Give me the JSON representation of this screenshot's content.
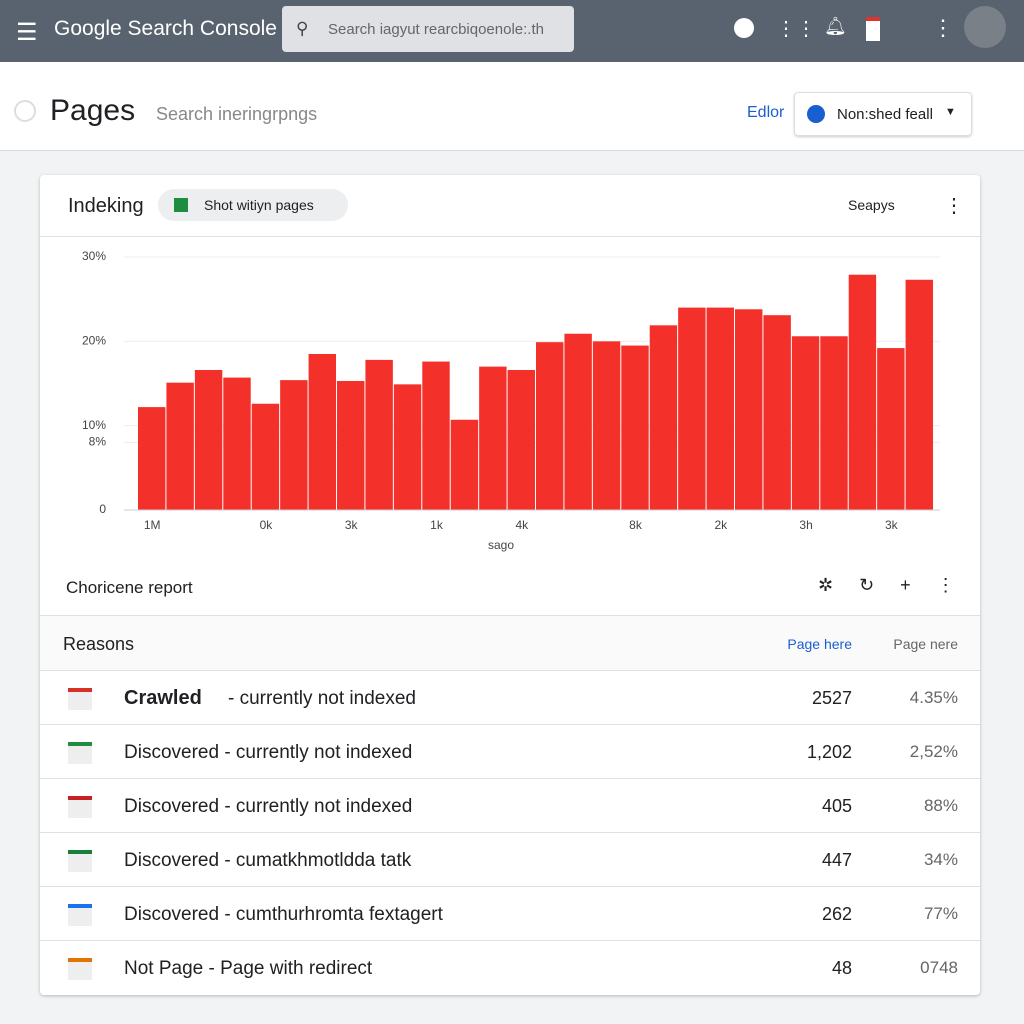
{
  "topbar": {
    "product": "Google Search Console",
    "search": "Search iagyut rearcbiqoenole:.th"
  },
  "header": {
    "title": "Pages",
    "subtitle": "Search ineringrpngs",
    "edit": "Edlor",
    "property": "Non:shed feall"
  },
  "card": {
    "title": "Indeking",
    "chip": "Shot witiyn pages",
    "menu": "Seapys",
    "report": "Choricene report"
  },
  "chart_data": {
    "type": "bar",
    "color": "#f4302a",
    "x_label": "sago",
    "categories": [
      "1M",
      null,
      null,
      null,
      "0k",
      null,
      null,
      "3k",
      null,
      null,
      "1k",
      null,
      null,
      "4k",
      null,
      null,
      null,
      "8k",
      null,
      null,
      "2k",
      null,
      null,
      "3h",
      null,
      null,
      "3k",
      null
    ],
    "values": [
      12.2,
      15.1,
      16.6,
      15.7,
      12.6,
      15.4,
      18.5,
      15.3,
      17.8,
      14.9,
      17.6,
      10.7,
      17.0,
      16.6,
      19.9,
      20.9,
      20.0,
      19.5,
      21.9,
      24.0,
      24.0,
      23.8,
      23.1,
      20.6,
      20.6,
      27.9,
      19.2,
      27.3
    ],
    "ylim": [
      0,
      30
    ],
    "yticks": [
      0,
      {
        "value": 8,
        "label": "8%"
      },
      {
        "value": 10,
        "label": "10%"
      },
      {
        "value": 20,
        "label": "20%"
      },
      {
        "value": 30,
        "label": "30%"
      }
    ],
    "grid": true
  },
  "table": {
    "headers": [
      "Reasons",
      "Page here",
      "Page nere"
    ],
    "rows": [
      {
        "strong": "Crawled",
        "text": "- currently not indexed",
        "pages": "2527",
        "percent": "4.35%"
      },
      {
        "text": "Discovered - currently not indexed",
        "pages": "1,202",
        "percent": "2,52%"
      },
      {
        "text": "Discovered - currently not indexed",
        "pages": "405",
        "percent": "88%"
      },
      {
        "text": "Discovered - cumatkhmotldda tatk",
        "pages": "447",
        "percent": "34%"
      },
      {
        "text": "Discovered - cumthurhromta fextagert",
        "pages": "262",
        "percent": "77%"
      },
      {
        "text": "Not Page - Page with redirect",
        "pages": "48",
        "percent": "0748"
      }
    ]
  }
}
